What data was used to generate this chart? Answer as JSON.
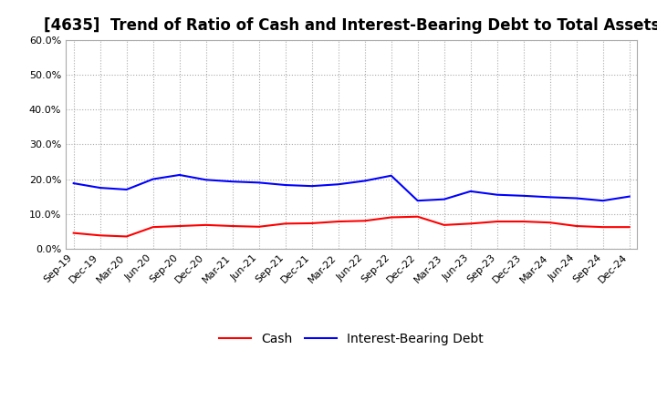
{
  "title": "[4635]  Trend of Ratio of Cash and Interest-Bearing Debt to Total Assets",
  "x_labels": [
    "Sep-19",
    "Dec-19",
    "Mar-20",
    "Jun-20",
    "Sep-20",
    "Dec-20",
    "Mar-21",
    "Jun-21",
    "Sep-21",
    "Dec-21",
    "Mar-22",
    "Jun-22",
    "Sep-22",
    "Dec-22",
    "Mar-23",
    "Jun-23",
    "Sep-23",
    "Dec-23",
    "Mar-24",
    "Jun-24",
    "Sep-24",
    "Dec-24"
  ],
  "cash": [
    4.5,
    3.8,
    3.5,
    6.2,
    6.5,
    6.8,
    6.5,
    6.3,
    7.2,
    7.3,
    7.8,
    8.0,
    9.0,
    9.2,
    6.8,
    7.2,
    7.8,
    7.8,
    7.5,
    6.5,
    6.2,
    6.2
  ],
  "debt": [
    18.8,
    17.5,
    17.0,
    20.0,
    21.2,
    19.8,
    19.3,
    19.0,
    18.3,
    18.0,
    18.5,
    19.5,
    21.0,
    13.8,
    14.2,
    16.5,
    15.5,
    15.2,
    14.8,
    14.5,
    13.8,
    15.0
  ],
  "cash_color": "#ff0000",
  "debt_color": "#0000ff",
  "background_color": "#ffffff",
  "grid_color": "#aaaaaa",
  "ylim": [
    0.0,
    60.0
  ],
  "yticks": [
    0.0,
    10.0,
    20.0,
    30.0,
    40.0,
    50.0,
    60.0
  ],
  "legend_cash": "Cash",
  "legend_debt": "Interest-Bearing Debt",
  "title_fontsize": 12,
  "tick_fontsize": 8,
  "legend_fontsize": 10,
  "line_width": 1.5
}
